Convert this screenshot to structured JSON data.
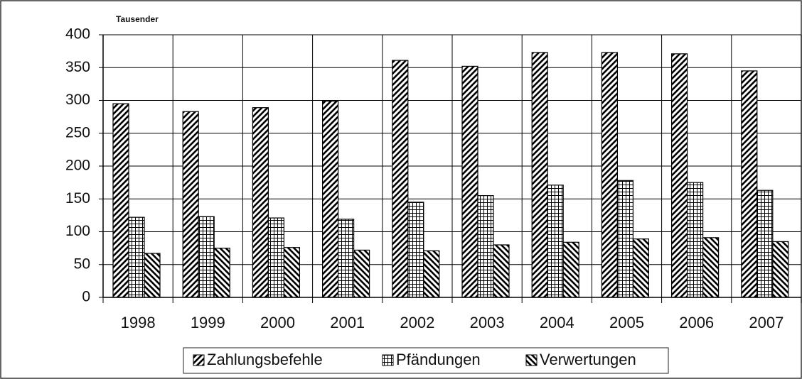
{
  "chart_data": {
    "type": "bar",
    "subtitle": "Tausender",
    "categories": [
      "1998",
      "1999",
      "2000",
      "2001",
      "2002",
      "2003",
      "2004",
      "2005",
      "2006",
      "2007"
    ],
    "series": [
      {
        "name": "Zahlungsbefehle",
        "color": "#000000",
        "values": [
          295,
          283,
          289,
          299,
          361,
          352,
          373,
          373,
          371,
          345
        ]
      },
      {
        "name": "Pfändungen",
        "color": "#000000",
        "values": [
          122,
          123,
          121,
          119,
          145,
          155,
          171,
          178,
          175,
          163
        ]
      },
      {
        "name": "Verwertungen",
        "color": "#000000",
        "values": [
          67,
          75,
          76,
          72,
          71,
          80,
          84,
          89,
          91,
          85
        ]
      }
    ],
    "ylim": [
      0,
      400
    ],
    "yticks": [
      0,
      50,
      100,
      150,
      200,
      250,
      300,
      350,
      400
    ],
    "grid": true,
    "legend": "bottom"
  }
}
